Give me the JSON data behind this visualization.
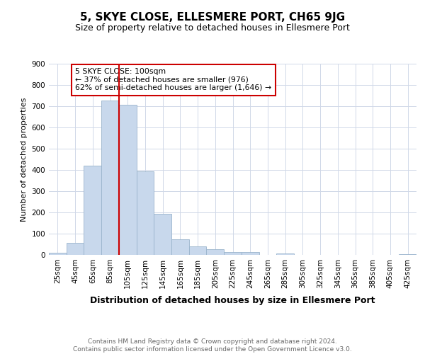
{
  "title": "5, SKYE CLOSE, ELLESMERE PORT, CH65 9JG",
  "subtitle": "Size of property relative to detached houses in Ellesmere Port",
  "xlabel": "Distribution of detached houses by size in Ellesmere Port",
  "ylabel": "Number of detached properties",
  "bar_labels": [
    "25sqm",
    "45sqm",
    "65sqm",
    "85sqm",
    "105sqm",
    "125sqm",
    "145sqm",
    "165sqm",
    "185sqm",
    "205sqm",
    "225sqm",
    "245sqm",
    "265sqm",
    "285sqm",
    "305sqm",
    "325sqm",
    "345sqm",
    "365sqm",
    "385sqm",
    "405sqm",
    "425sqm"
  ],
  "bar_values": [
    10,
    58,
    420,
    725,
    705,
    395,
    195,
    75,
    40,
    28,
    12,
    12,
    0,
    8,
    0,
    0,
    0,
    0,
    0,
    0,
    5
  ],
  "bar_color": "#c8d8ec",
  "bar_edge_color": "#9ab4cc",
  "vline_color": "#cc0000",
  "vline_x_index": 4,
  "annotation_text": "5 SKYE CLOSE: 100sqm\n← 37% of detached houses are smaller (976)\n62% of semi-detached houses are larger (1,646) →",
  "annotation_box_color": "#ffffff",
  "annotation_box_edge": "#cc0000",
  "ylim": [
    0,
    900
  ],
  "yticks": [
    0,
    100,
    200,
    300,
    400,
    500,
    600,
    700,
    800,
    900
  ],
  "footer": "Contains HM Land Registry data © Crown copyright and database right 2024.\nContains public sector information licensed under the Open Government Licence v3.0.",
  "bg_color": "#ffffff",
  "grid_color": "#d0d8e8",
  "title_fontsize": 11,
  "subtitle_fontsize": 9,
  "xlabel_fontsize": 9,
  "ylabel_fontsize": 8,
  "tick_fontsize": 7.5,
  "footer_fontsize": 6.5,
  "footer_color": "#666666"
}
